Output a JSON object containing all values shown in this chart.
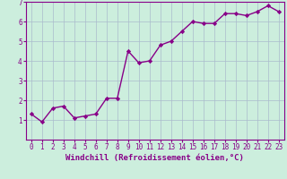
{
  "x": [
    0,
    1,
    2,
    3,
    4,
    5,
    6,
    7,
    8,
    9,
    10,
    11,
    12,
    13,
    14,
    15,
    16,
    17,
    18,
    19,
    20,
    21,
    22,
    23
  ],
  "y": [
    1.3,
    0.9,
    1.6,
    1.7,
    1.1,
    1.2,
    1.3,
    2.1,
    2.1,
    4.5,
    3.9,
    4.0,
    4.8,
    5.0,
    5.5,
    6.0,
    5.9,
    5.9,
    6.4,
    6.4,
    6.3,
    6.5,
    6.8,
    6.5
  ],
  "line_color": "#880088",
  "marker": "D",
  "marker_size": 2.2,
  "xlabel": "Windchill (Refroidissement éolien,°C)",
  "xlim_min": -0.5,
  "xlim_max": 23.5,
  "ylim_min": 0,
  "ylim_max": 7,
  "yticks": [
    1,
    2,
    3,
    4,
    5,
    6,
    7
  ],
  "xticks": [
    0,
    1,
    2,
    3,
    4,
    5,
    6,
    7,
    8,
    9,
    10,
    11,
    12,
    13,
    14,
    15,
    16,
    17,
    18,
    19,
    20,
    21,
    22,
    23
  ],
  "bg_color": "#cceedd",
  "grid_color": "#aabbcc",
  "xlabel_fontsize": 6.5,
  "tick_fontsize": 5.5,
  "line_width": 1.0
}
